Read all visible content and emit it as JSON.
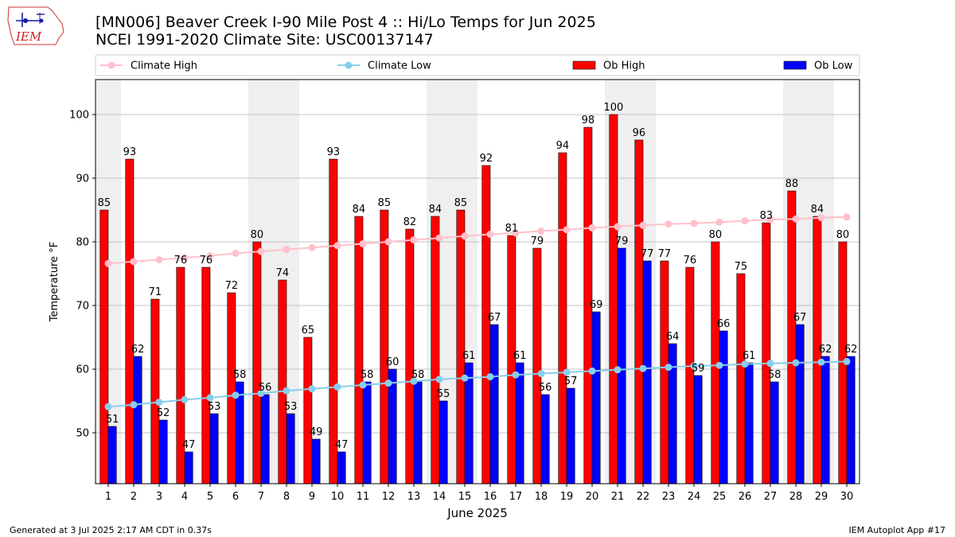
{
  "title_line1": "[MN006] Beaver Creek I-90 Mile Post 4 :: Hi/Lo Temps for Jun 2025",
  "title_line2": "NCEI 1991-2020 Climate Site: USC00137147",
  "logo_text": "IEM",
  "footer_left": "Generated at 3 Jul 2025 2:17 AM CDT in 0.37s",
  "footer_right": "IEM Autoplot App #17",
  "colors": {
    "ob_high": "#ff0000",
    "ob_low": "#0000ff",
    "climate_high": "#ffc0cb",
    "climate_low": "#87ceeb",
    "weekend_shade": "#efefef",
    "grid": "#b0b0b0"
  },
  "chart_data": {
    "type": "bar",
    "xlabel": "June 2025",
    "ylabel": "Temperature °F",
    "ylim": [
      42,
      105.5
    ],
    "yticks": [
      50,
      60,
      70,
      80,
      90,
      100
    ],
    "grid": "horizontal",
    "legend_position": "top",
    "categories": [
      "1",
      "2",
      "3",
      "4",
      "5",
      "6",
      "7",
      "8",
      "9",
      "10",
      "11",
      "12",
      "13",
      "14",
      "15",
      "16",
      "17",
      "18",
      "19",
      "20",
      "21",
      "22",
      "23",
      "24",
      "25",
      "26",
      "27",
      "28",
      "29",
      "30"
    ],
    "shaded_days": [
      1,
      7,
      8,
      14,
      15,
      21,
      22,
      28,
      29
    ],
    "series": [
      {
        "name": "Climate High",
        "kind": "line",
        "values": [
          76.6,
          76.9,
          77.2,
          77.5,
          77.8,
          78.2,
          78.5,
          78.8,
          79.1,
          79.4,
          79.7,
          80.0,
          80.3,
          80.6,
          80.9,
          81.2,
          81.4,
          81.7,
          81.9,
          82.2,
          82.4,
          82.6,
          82.8,
          82.9,
          83.1,
          83.3,
          83.5,
          83.6,
          83.8,
          83.9
        ]
      },
      {
        "name": "Climate Low",
        "kind": "line",
        "values": [
          54.1,
          54.4,
          54.8,
          55.2,
          55.5,
          55.9,
          56.2,
          56.6,
          56.9,
          57.2,
          57.5,
          57.8,
          58.1,
          58.4,
          58.6,
          58.8,
          59.1,
          59.3,
          59.5,
          59.7,
          59.9,
          60.1,
          60.3,
          60.5,
          60.6,
          60.8,
          60.9,
          61.0,
          61.1,
          61.2
        ]
      },
      {
        "name": "Ob High",
        "kind": "bar",
        "values": [
          85,
          93,
          71,
          76,
          76,
          72,
          80,
          74,
          65,
          93,
          84,
          85,
          82,
          84,
          85,
          92,
          81,
          79,
          94,
          98,
          100,
          96,
          77,
          76,
          80,
          75,
          83,
          88,
          84,
          80
        ],
        "labels": [
          "85",
          "93",
          "71",
          "76",
          "76",
          "72",
          "80",
          "74",
          "65",
          "93",
          "84",
          "85",
          "82",
          "84",
          "85",
          "92",
          "81",
          "79",
          "94",
          "98",
          "100",
          "96",
          "77",
          "76",
          "80",
          "75",
          "83",
          "88",
          "84",
          "80"
        ]
      },
      {
        "name": "Ob Low",
        "kind": "bar",
        "values": [
          51,
          62,
          52,
          47,
          53,
          58,
          56,
          53,
          49,
          47,
          58,
          60,
          58,
          55,
          61,
          67,
          61,
          56,
          57,
          69,
          79,
          77,
          64,
          59,
          66,
          61,
          58,
          67,
          62,
          62
        ],
        "labels": [
          "51",
          "62",
          "52",
          "47",
          "53",
          "58",
          "56",
          "53",
          "49",
          "47",
          "58",
          "60",
          "58",
          "55",
          "61",
          "67",
          "61",
          "56",
          "57",
          "69",
          "79",
          "77",
          "64",
          "59",
          "66",
          "61",
          "58",
          "67",
          "62",
          "62"
        ]
      }
    ]
  }
}
